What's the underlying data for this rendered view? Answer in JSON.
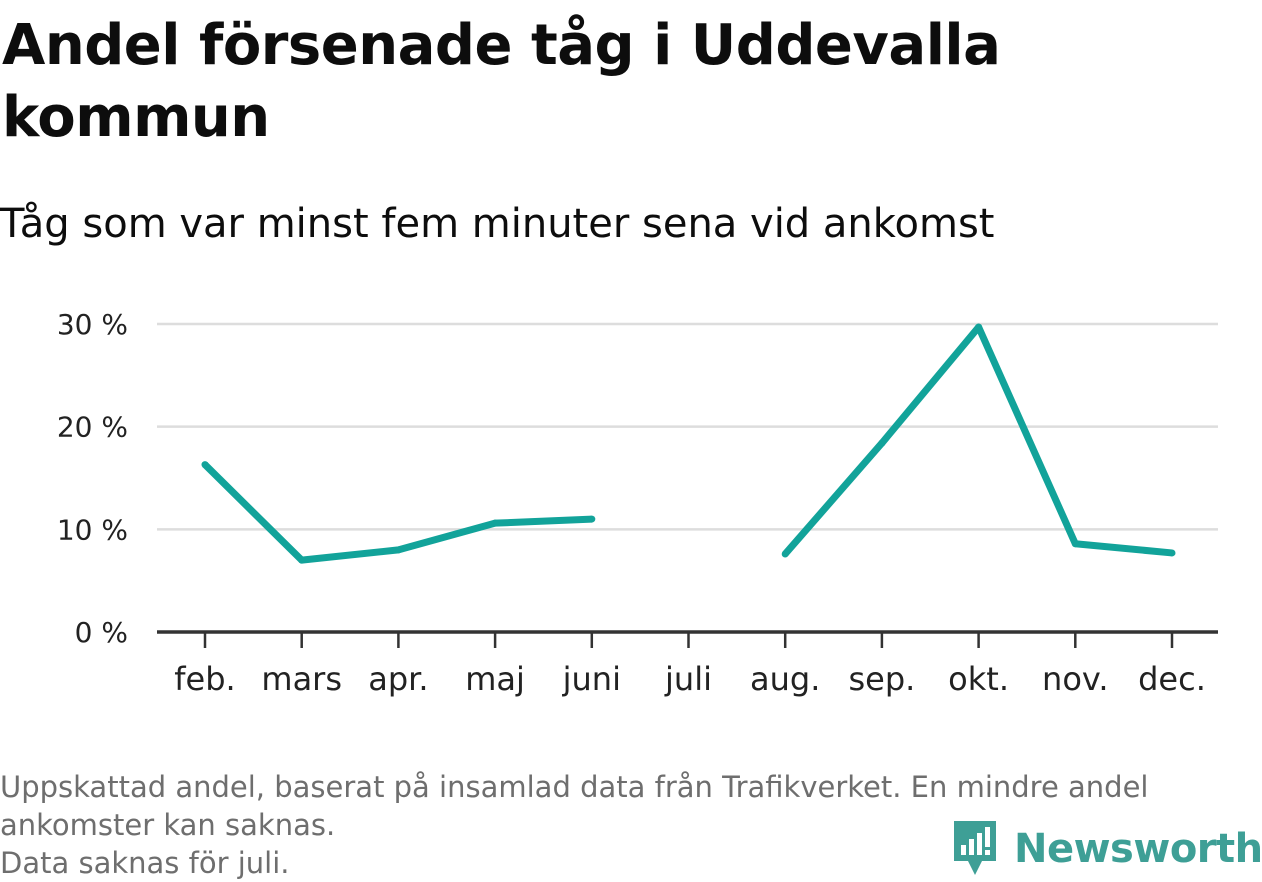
{
  "header": {
    "title": "Andel försenade tåg i Uddevalla kommun",
    "subtitle": "Tåg som var minst fem minuter sena vid ankomst"
  },
  "chart_data": {
    "type": "line",
    "title": "Andel försenade tåg i Uddevalla kommun",
    "subtitle": "Tåg som var minst fem minuter sena vid ankomst",
    "xlabel": "",
    "ylabel": "",
    "categories": [
      "feb.",
      "mars",
      "apr.",
      "maj",
      "juni",
      "juli",
      "aug.",
      "sep.",
      "okt.",
      "nov.",
      "dec."
    ],
    "series": [
      {
        "values": [
          16.3,
          7.0,
          8.0,
          10.6,
          11.0,
          null,
          7.6,
          18.4,
          29.7,
          8.6,
          7.7
        ]
      }
    ],
    "yticks": [
      0,
      10,
      20,
      30
    ],
    "ytick_labels": [
      "0 %",
      "10 %",
      "20 %",
      "30 %"
    ],
    "ylim": [
      0,
      30
    ],
    "grid": true,
    "legend": "none",
    "colors": {
      "line": "#12a39a",
      "grid": "#dddddd",
      "axis": "#333333"
    }
  },
  "footer": {
    "notes": [
      "Uppskattad andel, baserat på insamlad data från Trafikverket. En mindre andel",
      "ankomster kan saknas.",
      "Data saknas för juli."
    ],
    "brand": "Newsworthy",
    "brand_color": "#3e9f96",
    "brand_icon": "bar-chart-speech-bubble-icon"
  }
}
